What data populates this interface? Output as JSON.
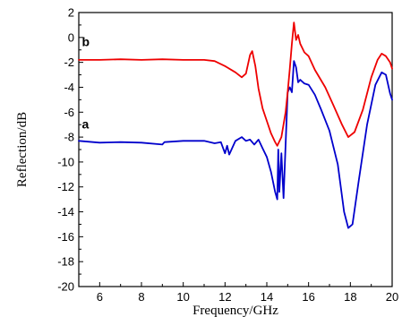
{
  "chart_data": {
    "type": "line",
    "title": "",
    "xlabel": "Frequency/GHz",
    "ylabel": "Reflection/dB",
    "xlim": [
      5,
      20
    ],
    "ylim": [
      -20,
      2
    ],
    "x_ticks": [
      6,
      8,
      10,
      12,
      14,
      16,
      18,
      20
    ],
    "y_ticks": [
      2,
      0,
      -2,
      -4,
      -6,
      -8,
      -10,
      -12,
      -14,
      -16,
      -18,
      -20
    ],
    "grid": false,
    "legend": "none",
    "series": [
      {
        "name": "a",
        "color": "#0000cc",
        "points": [
          [
            5.0,
            -8.3
          ],
          [
            6.0,
            -8.45
          ],
          [
            7.0,
            -8.4
          ],
          [
            8.0,
            -8.45
          ],
          [
            9.0,
            -8.6
          ],
          [
            9.1,
            -8.4
          ],
          [
            10.0,
            -8.3
          ],
          [
            11.0,
            -8.3
          ],
          [
            11.5,
            -8.5
          ],
          [
            11.8,
            -8.4
          ],
          [
            12.0,
            -9.3
          ],
          [
            12.1,
            -8.7
          ],
          [
            12.2,
            -9.4
          ],
          [
            12.5,
            -8.3
          ],
          [
            12.8,
            -8.0
          ],
          [
            13.0,
            -8.3
          ],
          [
            13.2,
            -8.2
          ],
          [
            13.4,
            -8.6
          ],
          [
            13.6,
            -8.2
          ],
          [
            13.8,
            -8.9
          ],
          [
            14.0,
            -9.6
          ],
          [
            14.2,
            -10.8
          ],
          [
            14.4,
            -12.4
          ],
          [
            14.5,
            -13.0
          ],
          [
            14.55,
            -9.0
          ],
          [
            14.6,
            -12.4
          ],
          [
            14.7,
            -9.3
          ],
          [
            14.8,
            -12.9
          ],
          [
            14.9,
            -8.6
          ],
          [
            15.0,
            -4.4
          ],
          [
            15.1,
            -4.0
          ],
          [
            15.2,
            -4.4
          ],
          [
            15.3,
            -1.9
          ],
          [
            15.4,
            -2.4
          ],
          [
            15.5,
            -3.6
          ],
          [
            15.6,
            -3.4
          ],
          [
            15.8,
            -3.7
          ],
          [
            16.0,
            -3.8
          ],
          [
            16.3,
            -4.6
          ],
          [
            16.6,
            -5.8
          ],
          [
            17.0,
            -7.5
          ],
          [
            17.4,
            -10.2
          ],
          [
            17.7,
            -14.0
          ],
          [
            17.9,
            -15.3
          ],
          [
            18.1,
            -15.0
          ],
          [
            18.4,
            -11.5
          ],
          [
            18.8,
            -7.0
          ],
          [
            19.2,
            -3.8
          ],
          [
            19.5,
            -2.8
          ],
          [
            19.7,
            -3.0
          ],
          [
            19.9,
            -4.5
          ],
          [
            20.0,
            -5.0
          ]
        ]
      },
      {
        "name": "b",
        "color": "#ee0000",
        "points": [
          [
            5.0,
            -1.8
          ],
          [
            6.0,
            -1.8
          ],
          [
            7.0,
            -1.75
          ],
          [
            8.0,
            -1.8
          ],
          [
            9.0,
            -1.75
          ],
          [
            10.0,
            -1.8
          ],
          [
            11.0,
            -1.8
          ],
          [
            11.5,
            -1.9
          ],
          [
            12.0,
            -2.3
          ],
          [
            12.5,
            -2.8
          ],
          [
            12.8,
            -3.2
          ],
          [
            13.0,
            -2.9
          ],
          [
            13.2,
            -1.4
          ],
          [
            13.3,
            -1.1
          ],
          [
            13.45,
            -2.3
          ],
          [
            13.6,
            -4.1
          ],
          [
            13.8,
            -5.7
          ],
          [
            14.0,
            -6.7
          ],
          [
            14.2,
            -7.7
          ],
          [
            14.4,
            -8.4
          ],
          [
            14.5,
            -8.7
          ],
          [
            14.7,
            -8.0
          ],
          [
            14.9,
            -6.0
          ],
          [
            15.0,
            -4.4
          ],
          [
            15.1,
            -2.5
          ],
          [
            15.2,
            -0.5
          ],
          [
            15.3,
            1.2
          ],
          [
            15.4,
            -0.2
          ],
          [
            15.5,
            0.2
          ],
          [
            15.6,
            -0.5
          ],
          [
            15.8,
            -1.2
          ],
          [
            16.0,
            -1.5
          ],
          [
            16.3,
            -2.6
          ],
          [
            16.8,
            -4.0
          ],
          [
            17.2,
            -5.5
          ],
          [
            17.6,
            -7.0
          ],
          [
            17.9,
            -8.0
          ],
          [
            18.2,
            -7.6
          ],
          [
            18.6,
            -5.8
          ],
          [
            19.0,
            -3.2
          ],
          [
            19.3,
            -1.8
          ],
          [
            19.5,
            -1.3
          ],
          [
            19.7,
            -1.5
          ],
          [
            19.9,
            -2.0
          ],
          [
            20.0,
            -2.5
          ]
        ]
      }
    ],
    "annotations": [
      {
        "text": "b",
        "x": 5.15,
        "y": -0.7,
        "series": "b"
      },
      {
        "text": "a",
        "x": 5.15,
        "y": -7.3,
        "series": "a"
      }
    ]
  }
}
